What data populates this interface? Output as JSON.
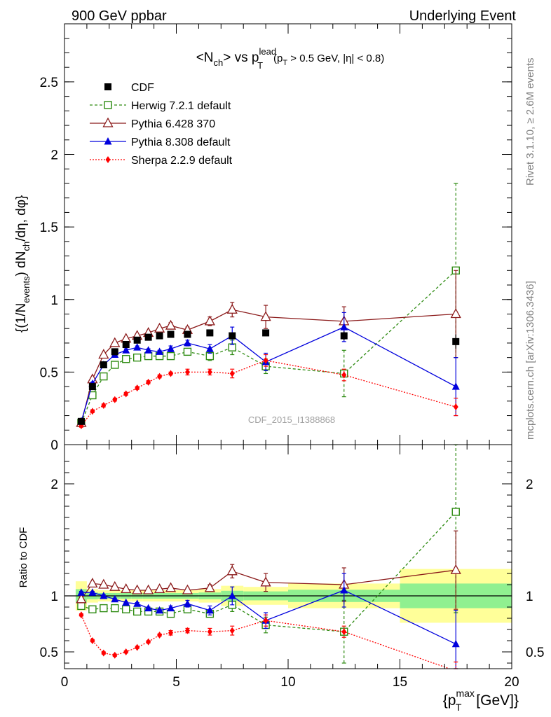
{
  "header": {
    "left": "900 GeV ppbar",
    "right": "Underlying Event"
  },
  "side_labels": {
    "rivet": "Rivet 3.1.10, ≥ 2.6M events",
    "mcplots": "mcplots.cern.ch [arXiv:1306.3436]"
  },
  "colors": {
    "data": "#000000",
    "herwig": "#2e8b12",
    "pythia6": "#8b1a1a",
    "pythia8": "#0000dd",
    "sherpa": "#ff0000",
    "band_inner": "#90f090",
    "band_outer": "#ffff99"
  },
  "chart_data": [
    {
      "type": "scatter",
      "panel": "main",
      "title": "<N_ch> vs p_T^lead (p_T > 0.5 GeV, |η| < 0.8)",
      "title_main": "<N",
      "title_main_sub": "ch",
      "title_vs": "> vs p",
      "title_p_sup": "lead",
      "title_p_sub": "T",
      "title_cut": "(p",
      "title_cut_sub": "T",
      "title_cut_rest": " > 0.5 GeV, |η| < 0.8)",
      "watermark": "CDF_2015_I1388868",
      "ylabel": "{(1/N_events) dN_ch/dη, dφ}",
      "ylabel_parts": [
        "{(1/N",
        "events",
        ") dN",
        "ch",
        "/dη, dφ}"
      ],
      "ylim": [
        0,
        2.9
      ],
      "xlim": [
        0,
        20
      ],
      "yticks": [
        0,
        0.5,
        1,
        1.5,
        2,
        2.5
      ],
      "ytick_labels": [
        "0",
        "0.5",
        "1",
        "1.5",
        "2",
        "2.5"
      ],
      "legend": [
        "CDF",
        "Herwig 7.2.1 default",
        "Pythia 6.428 370",
        "Pythia 8.308 default",
        "Sherpa 2.2.9 default"
      ],
      "legend_position": "top-left",
      "x": [
        0.75,
        1.25,
        1.75,
        2.25,
        2.75,
        3.25,
        3.75,
        4.25,
        4.75,
        5.5,
        6.5,
        7.5,
        9.0,
        12.5,
        17.5
      ],
      "series": [
        {
          "name": "CDF",
          "values": [
            0.16,
            0.4,
            0.55,
            0.64,
            0.69,
            0.72,
            0.74,
            0.75,
            0.76,
            0.76,
            0.77,
            0.75,
            0.77,
            0.75,
            0.71
          ]
        },
        {
          "name": "Herwig 7.2.1 default",
          "values": [
            0.15,
            0.34,
            0.47,
            0.55,
            0.59,
            0.6,
            0.61,
            0.61,
            0.61,
            0.64,
            0.61,
            0.67,
            0.54,
            0.49,
            1.2
          ],
          "errors": [
            0.01,
            0.01,
            0.01,
            0.01,
            0.01,
            0.01,
            0.01,
            0.01,
            0.01,
            0.02,
            0.03,
            0.05,
            0.05,
            0.16,
            0.6
          ]
        },
        {
          "name": "Pythia 6.428 370",
          "values": [
            0.15,
            0.45,
            0.62,
            0.7,
            0.73,
            0.75,
            0.77,
            0.8,
            0.82,
            0.79,
            0.85,
            0.93,
            0.88,
            0.85,
            0.9
          ],
          "errors": [
            0.01,
            0.01,
            0.01,
            0.01,
            0.01,
            0.01,
            0.01,
            0.01,
            0.02,
            0.02,
            0.03,
            0.05,
            0.08,
            0.1,
            0.3
          ]
        },
        {
          "name": "Pythia 8.308 default",
          "values": [
            0.16,
            0.42,
            0.55,
            0.62,
            0.65,
            0.67,
            0.65,
            0.64,
            0.66,
            0.7,
            0.66,
            0.75,
            0.57,
            0.81,
            0.4
          ],
          "errors": [
            0.01,
            0.01,
            0.01,
            0.01,
            0.01,
            0.01,
            0.01,
            0.01,
            0.02,
            0.02,
            0.03,
            0.06,
            0.06,
            0.1,
            0.2
          ]
        },
        {
          "name": "Sherpa 2.2.9 default",
          "values": [
            0.13,
            0.23,
            0.27,
            0.31,
            0.35,
            0.39,
            0.43,
            0.47,
            0.49,
            0.5,
            0.5,
            0.49,
            0.58,
            0.48,
            0.26
          ],
          "errors": [
            0.01,
            0.01,
            0.01,
            0.01,
            0.01,
            0.01,
            0.01,
            0.01,
            0.01,
            0.02,
            0.02,
            0.03,
            0.04,
            0.04,
            0.06
          ]
        }
      ],
      "data_errors": [
        0.005,
        0.01,
        0.01,
        0.01,
        0.01,
        0.01,
        0.01,
        0.01,
        0.01,
        0.01,
        0.01,
        0.02,
        0.02,
        0.03,
        0.05
      ]
    },
    {
      "type": "scatter",
      "panel": "ratio",
      "ylabel": "Ratio to CDF",
      "xlabel": "{p_T^max [GeV]}",
      "xlabel_main": "{p",
      "xlabel_sub": "T",
      "xlabel_sup": "max",
      "xlabel_rest": " [GeV]}",
      "xlim": [
        0,
        20
      ],
      "ylim": [
        0.35,
        2.35
      ],
      "xticks": [
        0,
        5,
        10,
        15,
        20
      ],
      "xtick_labels": [
        "0",
        "5",
        "10",
        "15",
        "20"
      ],
      "yticks": [
        0.5,
        1,
        2
      ],
      "ytick_labels": [
        "0.5",
        "1",
        "2"
      ],
      "bins": [
        [
          0.5,
          1.0
        ],
        [
          1.0,
          1.5
        ],
        [
          1.5,
          2.0
        ],
        [
          2.0,
          2.5
        ],
        [
          2.5,
          3.0
        ],
        [
          3.0,
          3.5
        ],
        [
          3.5,
          4.0
        ],
        [
          4.0,
          4.5
        ],
        [
          4.5,
          5.0
        ],
        [
          5.0,
          6.0
        ],
        [
          6.0,
          7.0
        ],
        [
          7.0,
          8.0
        ],
        [
          8.0,
          10.0
        ],
        [
          10.0,
          15.0
        ],
        [
          15.0,
          20.0
        ]
      ],
      "band_inner": [
        0.06,
        0.03,
        0.025,
        0.025,
        0.025,
        0.025,
        0.025,
        0.025,
        0.025,
        0.025,
        0.03,
        0.045,
        0.04,
        0.055,
        0.11
      ],
      "band_outer": [
        0.13,
        0.06,
        0.05,
        0.05,
        0.05,
        0.05,
        0.05,
        0.05,
        0.05,
        0.05,
        0.06,
        0.09,
        0.08,
        0.11,
        0.24
      ],
      "x": [
        0.75,
        1.25,
        1.75,
        2.25,
        2.75,
        3.25,
        3.75,
        4.25,
        4.75,
        5.5,
        6.5,
        7.5,
        9.0,
        12.5,
        17.5
      ],
      "series": [
        {
          "name": "Herwig 7.2.1 default",
          "values": [
            0.91,
            0.88,
            0.89,
            0.89,
            0.88,
            0.86,
            0.86,
            0.86,
            0.84,
            0.88,
            0.84,
            0.92,
            0.74,
            0.68,
            1.75
          ],
          "errors": [
            0.01,
            0.01,
            0.01,
            0.01,
            0.01,
            0.01,
            0.01,
            0.01,
            0.01,
            0.02,
            0.03,
            0.06,
            0.07,
            0.28,
            0.9
          ]
        },
        {
          "name": "Pythia 6.428 370",
          "values": [
            0.97,
            1.11,
            1.1,
            1.08,
            1.06,
            1.05,
            1.05,
            1.06,
            1.07,
            1.05,
            1.07,
            1.22,
            1.12,
            1.1,
            1.23
          ],
          "errors": [
            0.01,
            0.01,
            0.01,
            0.01,
            0.01,
            0.01,
            0.01,
            0.01,
            0.02,
            0.02,
            0.03,
            0.06,
            0.08,
            0.15,
            0.35
          ]
        },
        {
          "name": "Pythia 8.308 default",
          "values": [
            1.03,
            1.03,
            1.0,
            0.97,
            0.94,
            0.93,
            0.89,
            0.87,
            0.89,
            0.93,
            0.87,
            1.0,
            0.78,
            1.05,
            0.57
          ],
          "errors": [
            0.01,
            0.01,
            0.01,
            0.01,
            0.01,
            0.01,
            0.01,
            0.01,
            0.02,
            0.03,
            0.04,
            0.08,
            0.07,
            0.15,
            0.3
          ]
        },
        {
          "name": "Sherpa 2.2.9 default",
          "values": [
            0.83,
            0.6,
            0.49,
            0.47,
            0.5,
            0.54,
            0.59,
            0.65,
            0.67,
            0.69,
            0.68,
            0.69,
            0.78,
            0.68,
            0.33
          ],
          "errors": [
            0.01,
            0.01,
            0.01,
            0.01,
            0.01,
            0.01,
            0.01,
            0.01,
            0.02,
            0.02,
            0.03,
            0.04,
            0.05,
            0.05,
            0.08
          ]
        }
      ]
    }
  ]
}
